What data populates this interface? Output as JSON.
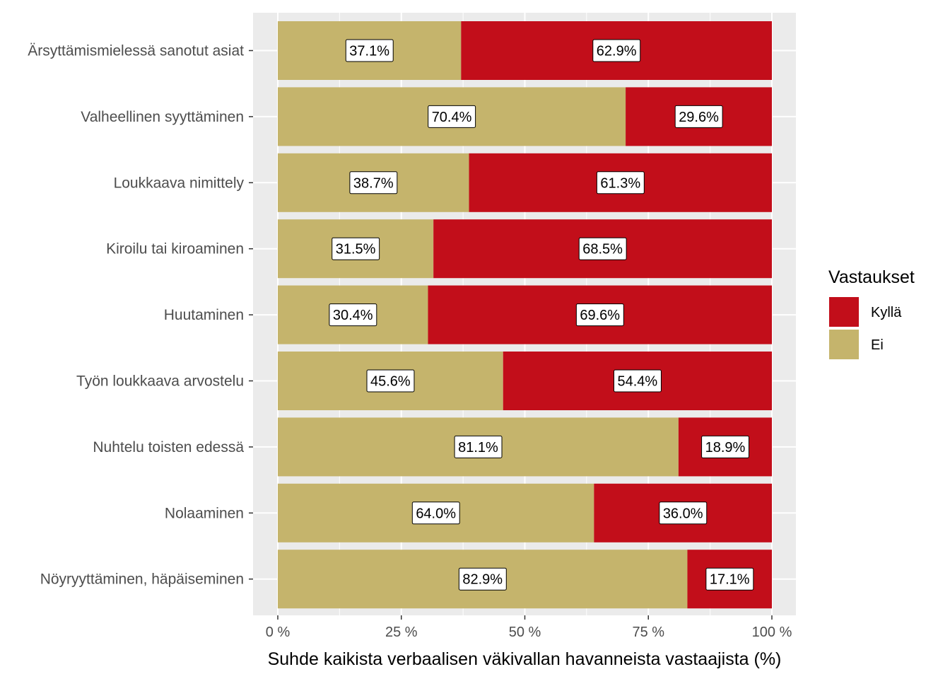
{
  "chart_data": {
    "type": "bar",
    "orientation": "horizontal",
    "stacked": true,
    "categories": [
      "Ärsyttämismielessä sanotut asiat",
      "Valheellinen syyttäminen",
      "Loukkaava nimittely",
      "Kiroilu tai kiroaminen",
      "Huutaminen",
      "Työn loukkaava arvostelu",
      "Nuhtelu toisten edessä",
      "Nolaaminen",
      "Nöyryyttäminen, häpäiseminen"
    ],
    "series": [
      {
        "name": "Ei",
        "color": "#c5b46c",
        "values": [
          37.1,
          70.4,
          38.7,
          31.5,
          30.4,
          45.6,
          81.1,
          64.0,
          82.9
        ],
        "labels": [
          "37.1%",
          "70.4%",
          "38.7%",
          "31.5%",
          "30.4%",
          "45.6%",
          "81.1%",
          "64.0%",
          "82.9%"
        ]
      },
      {
        "name": "Kyllä",
        "color": "#c20e1a",
        "values": [
          62.9,
          29.6,
          61.3,
          68.5,
          69.6,
          54.4,
          18.9,
          36.0,
          17.1
        ],
        "labels": [
          "62.9%",
          "29.6%",
          "61.3%",
          "68.5%",
          "69.6%",
          "54.4%",
          "18.9%",
          "36.0%",
          "17.1%"
        ]
      }
    ],
    "xlabel": "Suhde kaikista verbaalisen väkivallan havanneista vastaajista (%)",
    "xlim": [
      0,
      100
    ],
    "xticks": [
      0,
      25,
      50,
      75,
      100
    ],
    "xtick_labels": [
      "0 %",
      "25 %",
      "50 %",
      "75 %",
      "100 %"
    ],
    "grid": true,
    "legend": {
      "title": "Vastaukset",
      "position": "right",
      "entries": [
        {
          "name": "Kyllä",
          "color": "#c20e1a"
        },
        {
          "name": "Ei",
          "color": "#c5b46c"
        }
      ]
    }
  }
}
